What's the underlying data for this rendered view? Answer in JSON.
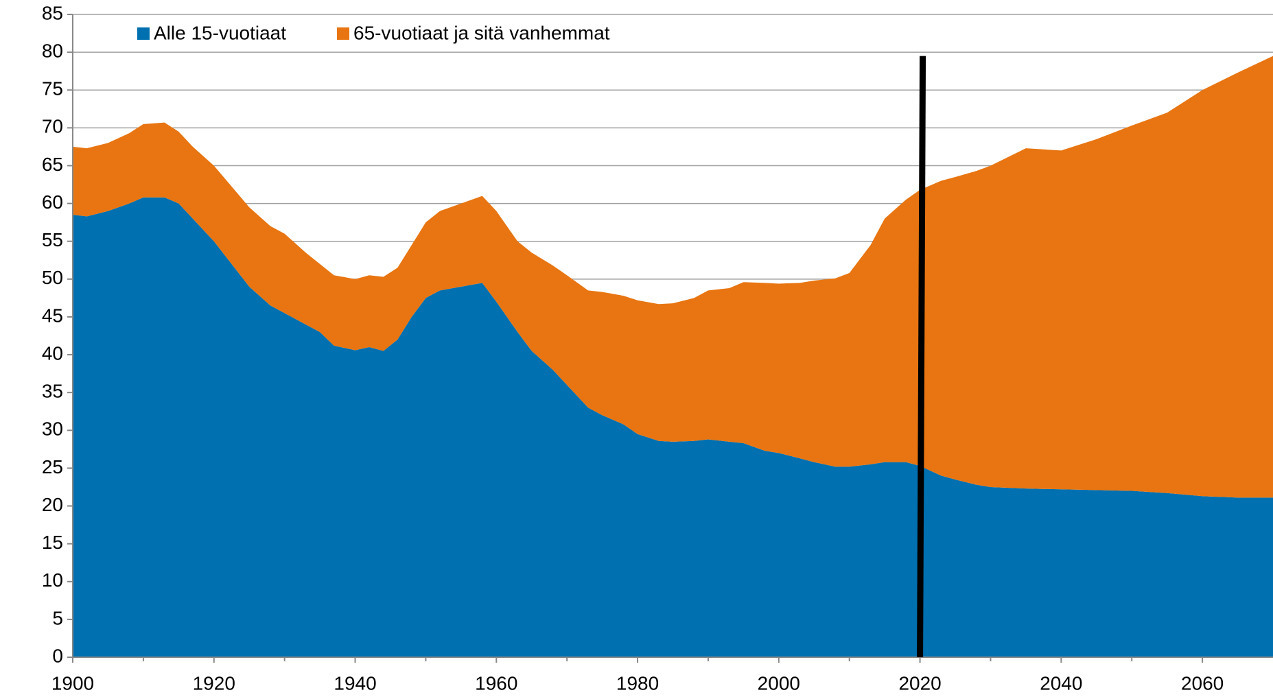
{
  "chart_data": {
    "type": "stacked_area",
    "x": [
      1900,
      1902,
      1905,
      1908,
      1910,
      1913,
      1915,
      1917,
      1920,
      1925,
      1928,
      1930,
      1933,
      1935,
      1937,
      1940,
      1942,
      1944,
      1946,
      1948,
      1950,
      1952,
      1955,
      1958,
      1960,
      1963,
      1965,
      1968,
      1970,
      1973,
      1975,
      1978,
      1980,
      1983,
      1985,
      1988,
      1990,
      1993,
      1995,
      1998,
      2000,
      2003,
      2005,
      2008,
      2010,
      2013,
      2015,
      2018,
      2020,
      2023,
      2025,
      2028,
      2030,
      2035,
      2040,
      2045,
      2050,
      2055,
      2060,
      2065,
      2070
    ],
    "series": [
      {
        "name": "Alle 15-vuotiaat",
        "color": "#0070b0",
        "values": [
          58.5,
          58.3,
          59,
          60,
          60.8,
          60.8,
          60,
          58,
          55,
          49,
          46.5,
          45.5,
          44,
          43,
          41.2,
          40.6,
          41,
          40.5,
          42,
          45,
          47.5,
          48.5,
          49,
          49.5,
          47,
          43,
          40.5,
          38,
          36,
          33,
          32,
          30.8,
          29.5,
          28.6,
          28.5,
          28.6,
          28.8,
          28.5,
          28.3,
          27.3,
          27,
          26.3,
          25.8,
          25.2,
          25.2,
          25.5,
          25.8,
          25.8,
          25.3,
          24,
          23.5,
          22.8,
          22.5,
          22.3,
          22.2,
          22.1,
          22,
          21.7,
          21.3,
          21.1,
          21.1
        ]
      },
      {
        "name": "65-vuotiaat ja sitä vanhemmat",
        "color": "#e87511",
        "values": [
          9.0,
          9.0,
          9.0,
          9.3,
          9.7,
          9.9,
          9.5,
          9.5,
          10.0,
          10.5,
          10.5,
          10.5,
          9.5,
          9.0,
          9.3,
          9.4,
          9.5,
          9.8,
          9.5,
          9.5,
          10.0,
          10.5,
          11.0,
          11.5,
          12.0,
          12.0,
          13.0,
          13.8,
          14.5,
          15.5,
          16.3,
          17.0,
          17.7,
          18.1,
          18.3,
          18.9,
          19.7,
          20.3,
          21.3,
          22.2,
          22.4,
          23.2,
          24.0,
          24.9,
          25.6,
          29.0,
          32.2,
          34.7,
          36.5,
          39.0,
          40.0,
          41.5,
          42.5,
          45.0,
          44.8,
          46.4,
          48.3,
          50.3,
          53.7,
          56.2,
          58.4
        ]
      }
    ],
    "xlim": [
      1900,
      2070
    ],
    "xticks": [
      1900,
      1920,
      1940,
      1960,
      1980,
      2000,
      2020,
      2040,
      2060
    ],
    "ylim": [
      0,
      85
    ],
    "yticks": [
      0,
      5,
      10,
      15,
      20,
      25,
      30,
      35,
      40,
      45,
      50,
      55,
      60,
      65,
      70,
      75,
      80,
      85
    ],
    "grid": true,
    "legend": "top-left",
    "marker_x": 2020
  }
}
